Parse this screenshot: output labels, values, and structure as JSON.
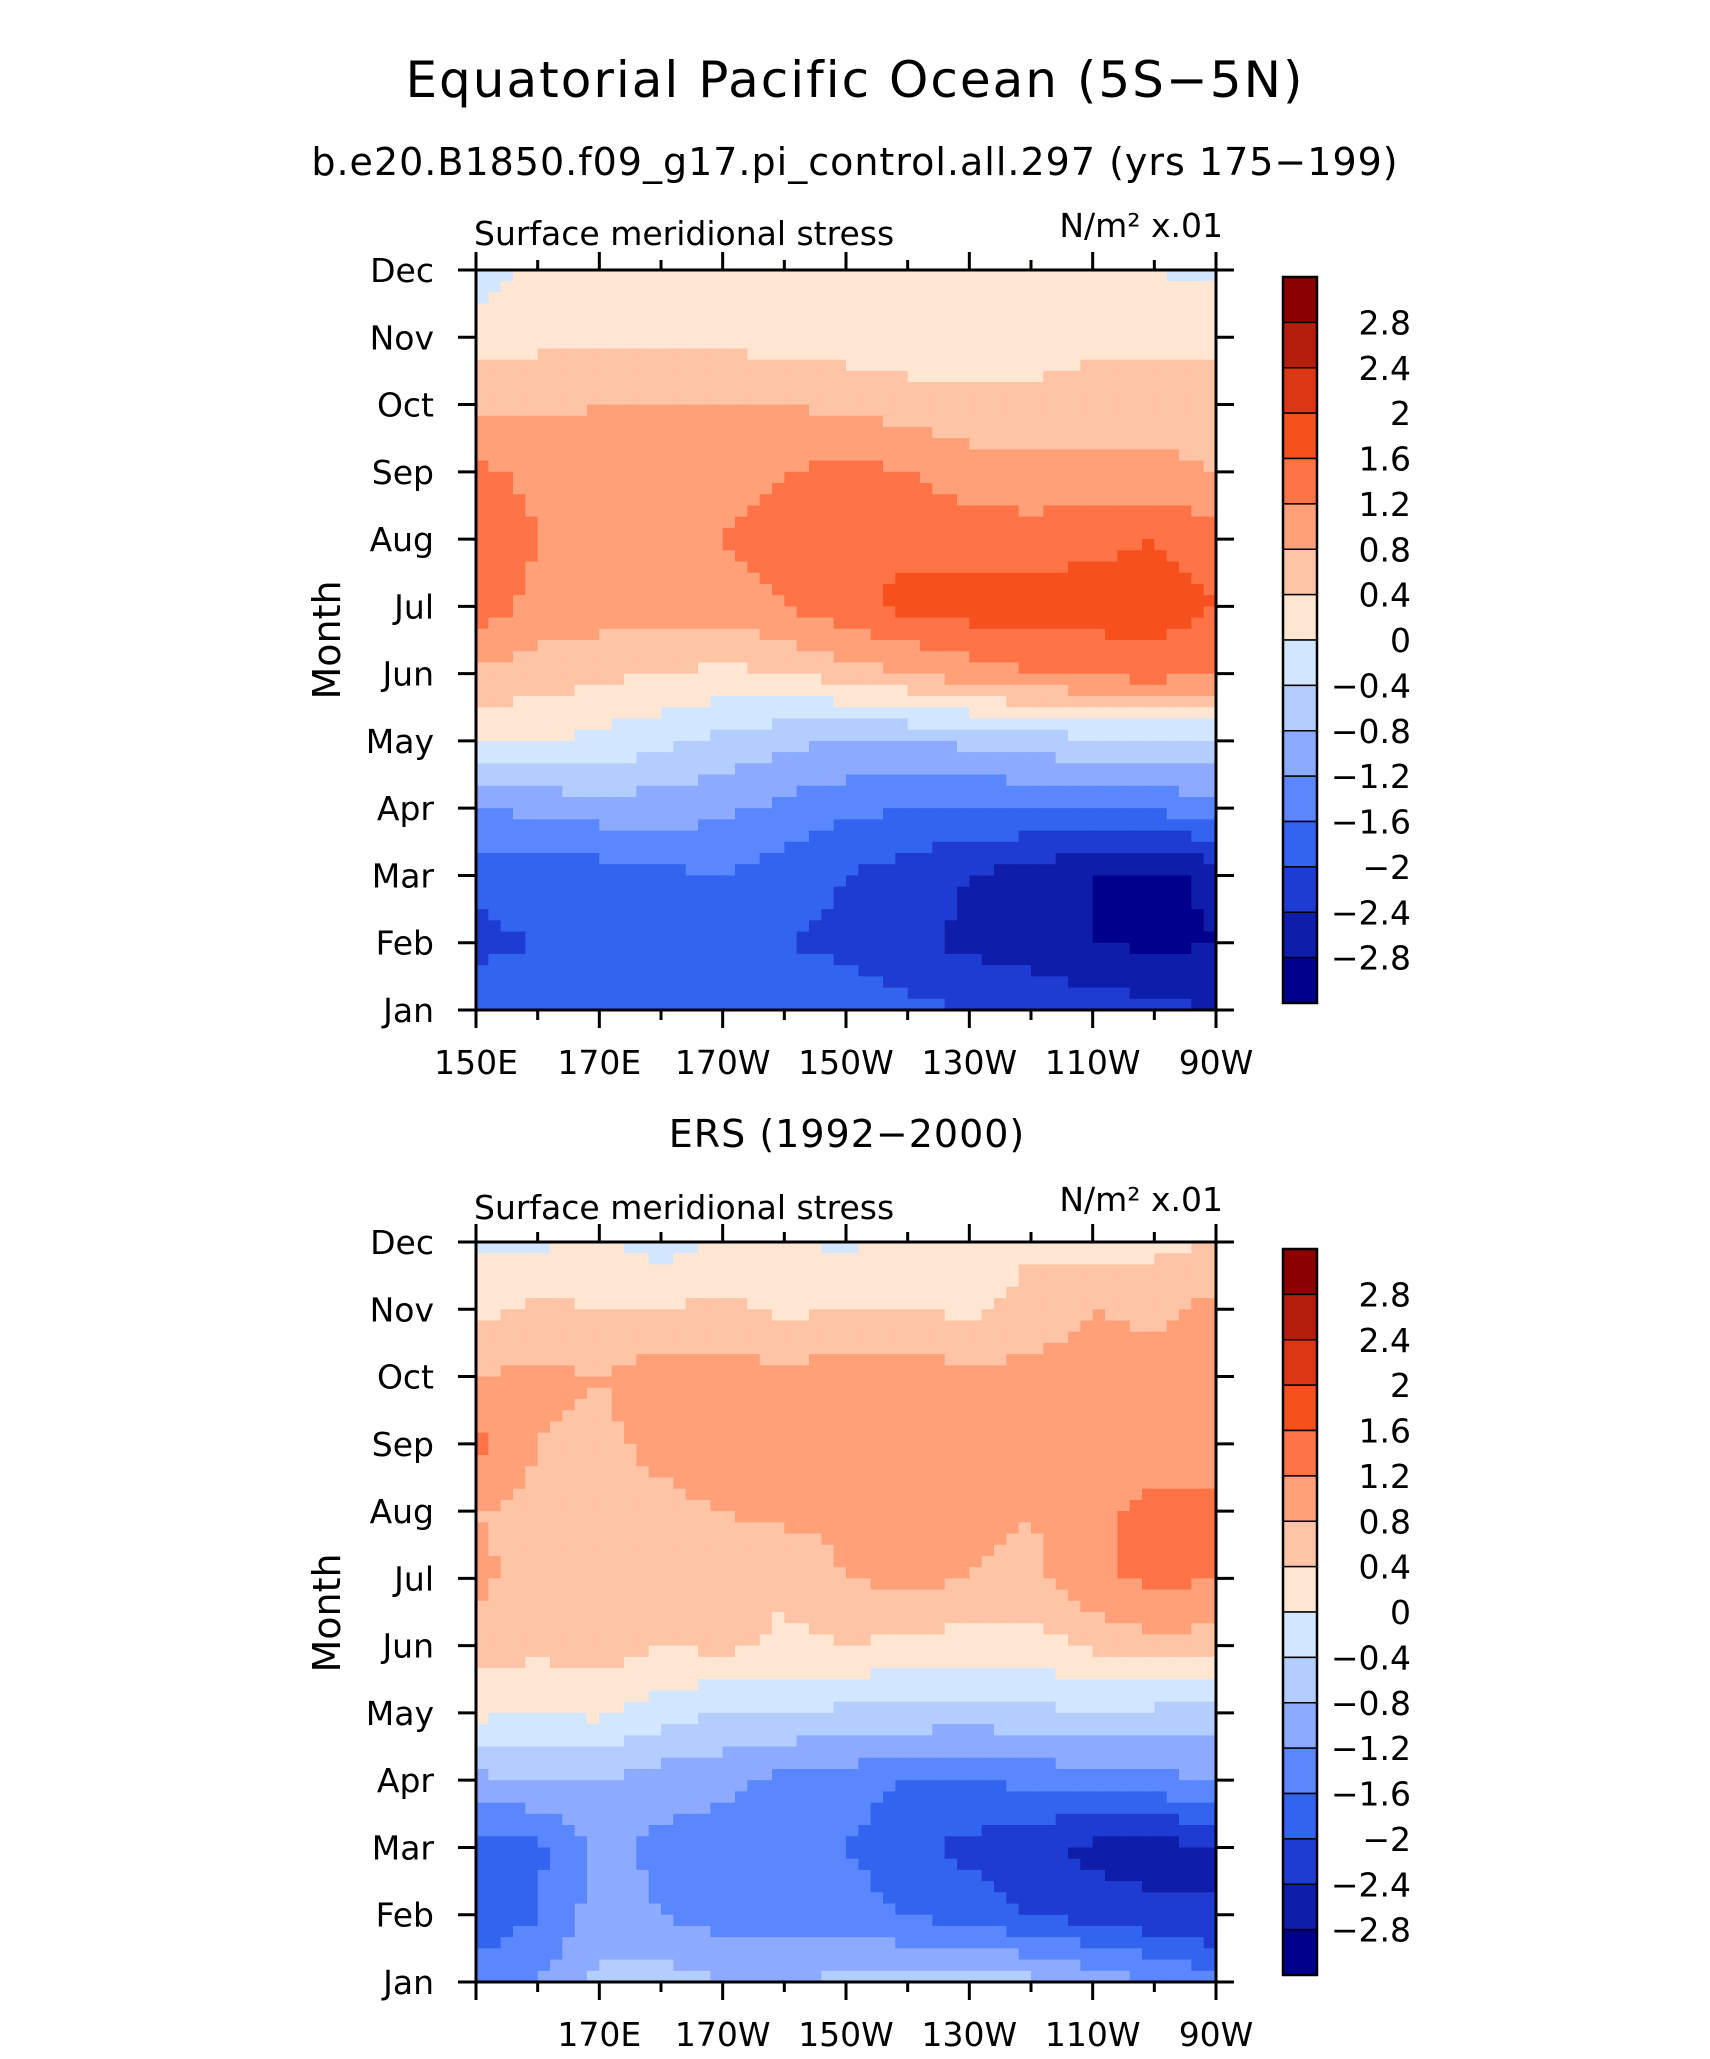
{
  "title": "Equatorial Pacific Ocean (5S−5N)",
  "subtitle": "b.e20.B1850.f09_g17.pi_control.all.297 (yrs 175−199)",
  "colorbar": {
    "levels": [
      "2.8",
      "2.4",
      "2",
      "1.6",
      "1.2",
      "0.8",
      "0.4",
      "0",
      "−0.4",
      "−0.8",
      "−1.2",
      "−1.6",
      "−2",
      "−2.4",
      "−2.8"
    ],
    "colors": [
      "#8b0000",
      "#b41e0a",
      "#dc3714",
      "#f5501e",
      "#ff7346",
      "#ffa078",
      "#ffc3a5",
      "#ffe6d2",
      "#d2e6ff",
      "#b4cdff",
      "#8caaff",
      "#5a87ff",
      "#3264f0",
      "#1e3cd2",
      "#0f1eaa",
      "#00008c"
    ]
  },
  "chart_data": [
    {
      "type": "heatmap",
      "name": "model",
      "title": "",
      "left_label": "Surface meridional stress",
      "units": "N/m² x.01",
      "ylabel": "Month",
      "xlabel": "",
      "x_ticks": [
        "150E",
        "170E",
        "170W",
        "150W",
        "130W",
        "110W",
        "90W"
      ],
      "y_ticks": [
        "Jan",
        "Feb",
        "Mar",
        "Apr",
        "May",
        "Jun",
        "Jul",
        "Aug",
        "Sep",
        "Oct",
        "Nov",
        "Dec"
      ],
      "x_lon": [
        150,
        160,
        170,
        180,
        190,
        200,
        210,
        220,
        230,
        240,
        250,
        260,
        270
      ],
      "y_months": [
        1,
        2,
        3,
        4,
        5,
        6,
        7,
        8,
        9,
        10,
        11,
        12
      ],
      "values": [
        [
          -1.8,
          -1.7,
          -1.6,
          -1.6,
          -1.6,
          -1.7,
          -1.8,
          -1.9,
          -2.0,
          -2.1,
          -2.2,
          -2.3,
          -2.4
        ],
        [
          -2.1,
          -2.0,
          -2.0,
          -1.9,
          -1.9,
          -2.0,
          -2.1,
          -2.3,
          -2.5,
          -2.6,
          -2.8,
          -2.9,
          -2.8
        ],
        [
          -1.9,
          -1.8,
          -1.8,
          -1.7,
          -1.6,
          -1.8,
          -2.0,
          -2.2,
          -2.4,
          -2.6,
          -2.8,
          -2.9,
          -2.7
        ],
        [
          -1.2,
          -1.1,
          -1.0,
          -1.0,
          -1.1,
          -1.3,
          -1.5,
          -1.6,
          -1.6,
          -1.6,
          -1.5,
          -1.5,
          -1.4
        ],
        [
          0.1,
          0.0,
          -0.1,
          -0.3,
          -0.5,
          -0.7,
          -0.8,
          -0.8,
          -0.7,
          -0.6,
          -0.5,
          -0.5,
          -0.4
        ],
        [
          0.7,
          0.6,
          0.5,
          0.4,
          0.3,
          0.4,
          0.6,
          0.8,
          1.0,
          1.2,
          1.3,
          1.4,
          1.2
        ],
        [
          1.4,
          1.1,
          1.0,
          1.0,
          1.0,
          1.2,
          1.5,
          1.7,
          1.8,
          1.8,
          1.8,
          1.8,
          1.6
        ],
        [
          1.5,
          1.2,
          1.1,
          1.1,
          1.2,
          1.4,
          1.5,
          1.5,
          1.4,
          1.4,
          1.5,
          1.6,
          1.4
        ],
        [
          1.3,
          1.1,
          1.0,
          1.0,
          1.0,
          1.2,
          1.3,
          1.2,
          1.0,
          0.9,
          0.9,
          0.9,
          0.8
        ],
        [
          0.7,
          0.7,
          0.8,
          0.8,
          0.8,
          0.8,
          0.7,
          0.6,
          0.5,
          0.5,
          0.6,
          0.6,
          0.6
        ],
        [
          0.2,
          0.3,
          0.3,
          0.3,
          0.3,
          0.2,
          0.2,
          0.1,
          0.1,
          0.2,
          0.3,
          0.3,
          0.3
        ],
        [
          -0.2,
          0.1,
          0.1,
          0.1,
          0.1,
          0.1,
          0.1,
          0.1,
          0.1,
          0.1,
          0.1,
          0.0,
          -0.1
        ]
      ]
    },
    {
      "type": "heatmap",
      "name": "observations",
      "title": "ERS (1992−2000)",
      "left_label": "Surface meridional stress",
      "units": "N/m² x.01",
      "ylabel": "Month",
      "xlabel": "",
      "x_ticks": [
        "170E",
        "170W",
        "150W",
        "130W",
        "110W",
        "90W"
      ],
      "y_ticks": [
        "Jan",
        "Feb",
        "Mar",
        "Apr",
        "May",
        "Jun",
        "Jul",
        "Aug",
        "Sep",
        "Oct",
        "Nov",
        "Dec"
      ],
      "x_lon": [
        150,
        160,
        170,
        180,
        190,
        200,
        210,
        220,
        230,
        240,
        250,
        260,
        270
      ],
      "y_months": [
        1,
        2,
        3,
        4,
        5,
        6,
        7,
        8,
        9,
        10,
        11,
        12
      ],
      "values": [
        [
          -1.3,
          -1.2,
          -0.7,
          -0.6,
          -0.8,
          -0.8,
          -0.7,
          -0.7,
          -0.6,
          -0.7,
          -0.9,
          -1.2,
          -1.5
        ],
        [
          -2.0,
          -1.6,
          -1.0,
          -1.2,
          -1.4,
          -1.4,
          -1.4,
          -1.6,
          -1.8,
          -2.0,
          -2.2,
          -2.3,
          -2.4
        ],
        [
          -1.8,
          -1.7,
          -1.1,
          -1.3,
          -1.4,
          -1.5,
          -1.6,
          -1.9,
          -2.1,
          -2.3,
          -2.5,
          -2.6,
          -2.4
        ],
        [
          -0.9,
          -0.8,
          -0.8,
          -1.0,
          -1.1,
          -1.3,
          -1.4,
          -1.6,
          -1.6,
          -1.5,
          -1.4,
          -1.3,
          -1.2
        ],
        [
          0.1,
          0.0,
          0.1,
          -0.2,
          -0.4,
          -0.4,
          -0.5,
          -0.5,
          -0.6,
          -0.5,
          -0.4,
          -0.5,
          -0.6
        ],
        [
          0.6,
          0.5,
          0.6,
          0.4,
          0.5,
          0.3,
          0.4,
          0.3,
          0.2,
          0.2,
          0.5,
          0.7,
          0.6
        ],
        [
          0.9,
          0.6,
          0.6,
          0.5,
          0.6,
          0.5,
          0.8,
          0.9,
          0.8,
          0.7,
          1.1,
          1.3,
          1.2
        ],
        [
          0.8,
          0.7,
          0.7,
          0.7,
          0.8,
          0.9,
          0.9,
          1.0,
          0.9,
          0.8,
          1.1,
          1.3,
          1.2
        ],
        [
          1.3,
          0.8,
          0.7,
          0.9,
          1.0,
          0.9,
          1.0,
          1.0,
          0.9,
          0.9,
          0.8,
          1.0,
          1.2
        ],
        [
          0.8,
          0.9,
          0.8,
          1.0,
          1.0,
          0.9,
          1.0,
          1.0,
          0.9,
          0.9,
          0.9,
          1.0,
          1.1
        ],
        [
          0.3,
          0.5,
          0.4,
          0.4,
          0.5,
          0.3,
          0.4,
          0.4,
          0.3,
          0.6,
          0.8,
          0.7,
          0.9
        ],
        [
          -0.1,
          -0.1,
          0.1,
          -0.2,
          0.1,
          0.1,
          -0.1,
          0.2,
          0.1,
          0.3,
          0.2,
          0.3,
          0.4
        ]
      ]
    }
  ]
}
